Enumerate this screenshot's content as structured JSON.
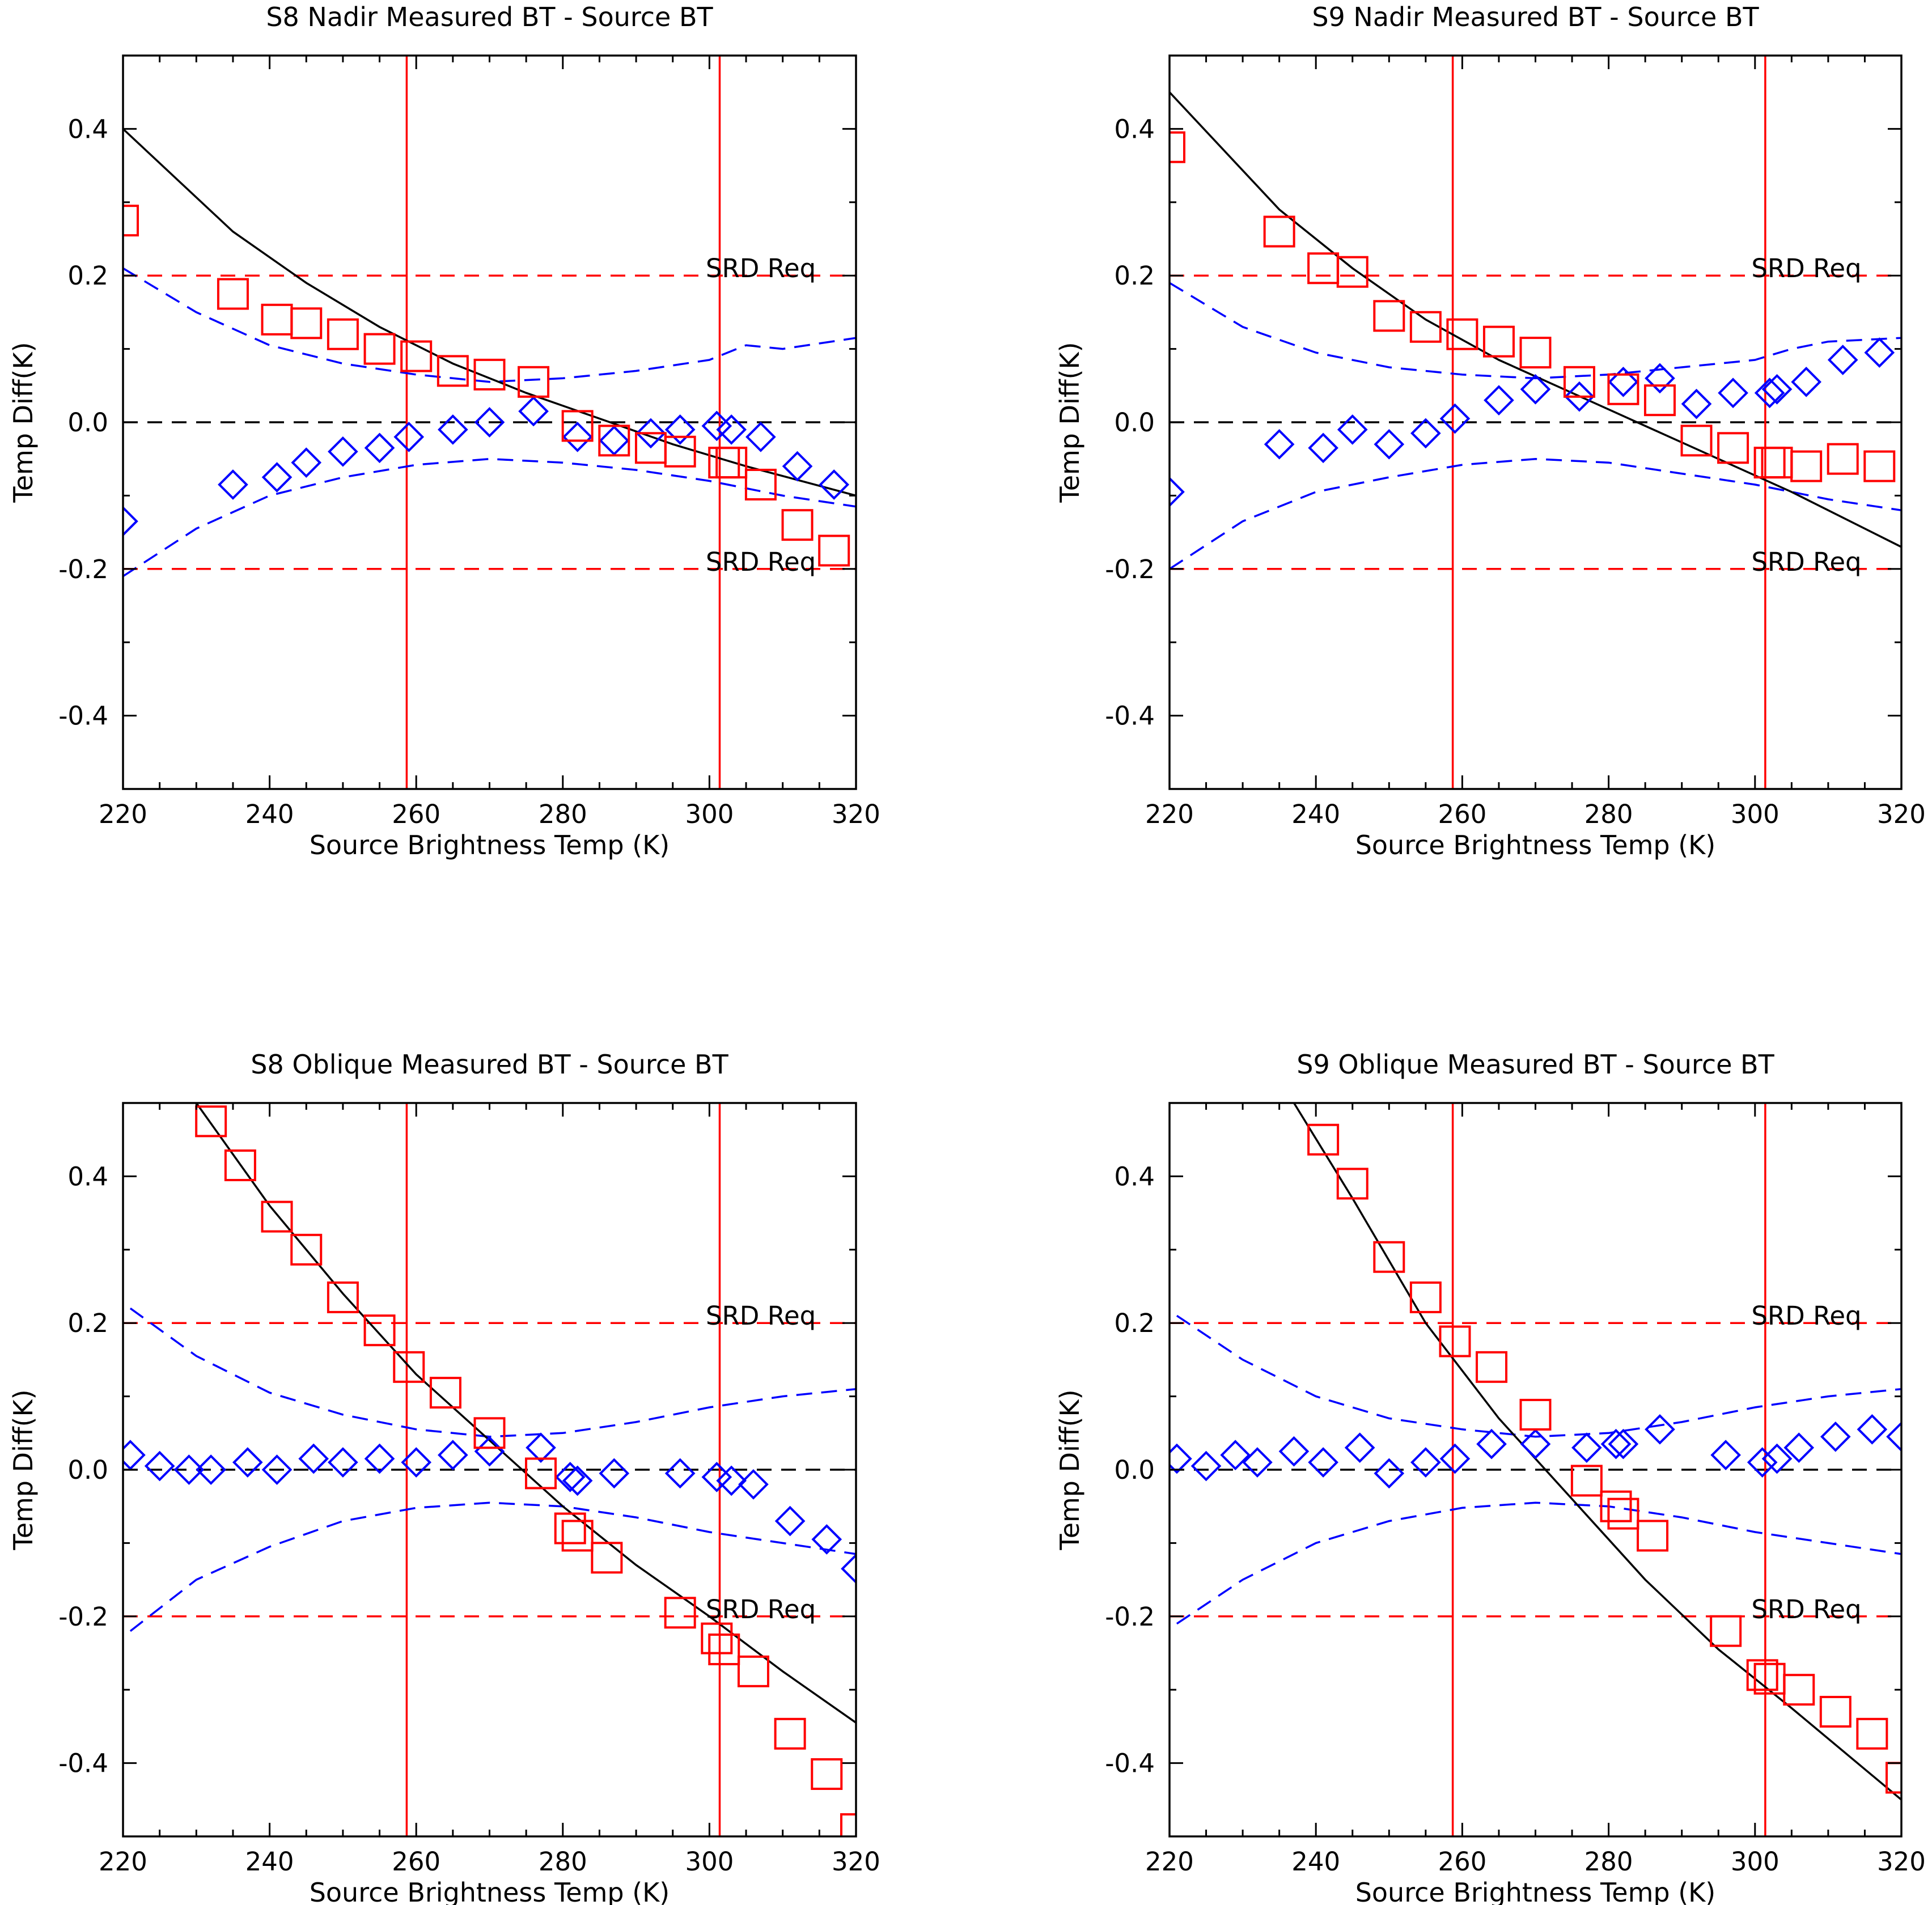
{
  "figure": {
    "name": "brightness-temperature-difference-panels"
  },
  "chart_data": [
    {
      "type": "scatter",
      "title": "S8 Nadir Measured BT - Source BT",
      "xlabel": "Source Brightness Temp (K)",
      "ylabel": "Temp Diff(K)",
      "xlim": [
        220,
        320
      ],
      "ylim": [
        -0.5,
        0.5
      ],
      "xticks": [
        220,
        240,
        260,
        280,
        300,
        320
      ],
      "yticks": [
        -0.4,
        -0.2,
        0.0,
        0.2,
        0.4
      ],
      "ytick_labels": [
        "-0.4",
        "-0.2",
        "0.0",
        "0.2",
        "0.4"
      ],
      "requirement": {
        "upper": 0.2,
        "lower": -0.2,
        "label": "SRD Req"
      },
      "vlines": [
        258.7,
        301.4
      ],
      "squares": {
        "name": "measured",
        "x": [
          220,
          235,
          241,
          245,
          250,
          255,
          260,
          265,
          270,
          276,
          282,
          287,
          292,
          296,
          302,
          303,
          307,
          312,
          317
        ],
        "y": [
          0.275,
          0.175,
          0.14,
          0.135,
          0.12,
          0.1,
          0.09,
          0.07,
          0.065,
          0.055,
          -0.005,
          -0.025,
          -0.035,
          -0.04,
          -0.055,
          -0.055,
          -0.085,
          -0.14,
          -0.175
        ]
      },
      "diamonds": {
        "name": "residual",
        "x": [
          220,
          235,
          241,
          245,
          250,
          255,
          259,
          265,
          270,
          276,
          282,
          287,
          292,
          296,
          301,
          303,
          307,
          312,
          317
        ],
        "y": [
          -0.135,
          -0.085,
          -0.075,
          -0.055,
          -0.04,
          -0.035,
          -0.02,
          -0.01,
          0.0,
          0.015,
          -0.02,
          -0.025,
          -0.015,
          -0.01,
          -0.005,
          -0.01,
          -0.02,
          -0.06,
          -0.085
        ]
      },
      "fit": {
        "name": "fit",
        "x": [
          220,
          235,
          245,
          255,
          265,
          275,
          285,
          295,
          305,
          320
        ],
        "y": [
          0.4,
          0.26,
          0.19,
          0.13,
          0.08,
          0.04,
          0.005,
          -0.03,
          -0.06,
          -0.1
        ]
      },
      "uncertainty_upper": {
        "name": "upper-uncertainty",
        "x": [
          220,
          230,
          240,
          250,
          260,
          270,
          280,
          290,
          300,
          305,
          310,
          320
        ],
        "y": [
          0.21,
          0.15,
          0.105,
          0.08,
          0.065,
          0.055,
          0.06,
          0.07,
          0.085,
          0.105,
          0.1,
          0.115
        ]
      },
      "uncertainty_lower": {
        "name": "lower-uncertainty",
        "x": [
          220,
          230,
          240,
          250,
          260,
          270,
          280,
          290,
          300,
          305,
          310,
          320
        ],
        "y": [
          -0.21,
          -0.145,
          -0.1,
          -0.075,
          -0.058,
          -0.05,
          -0.055,
          -0.065,
          -0.08,
          -0.09,
          -0.1,
          -0.115
        ]
      }
    },
    {
      "type": "scatter",
      "title": "S9 Nadir Measured BT - Source BT",
      "xlabel": "Source Brightness Temp (K)",
      "ylabel": "Temp Diff(K)",
      "xlim": [
        220,
        320
      ],
      "ylim": [
        -0.5,
        0.5
      ],
      "xticks": [
        220,
        240,
        260,
        280,
        300,
        320
      ],
      "yticks": [
        -0.4,
        -0.2,
        0.0,
        0.2,
        0.4
      ],
      "ytick_labels": [
        "-0.4",
        "-0.2",
        "0.0",
        "0.2",
        "0.4"
      ],
      "requirement": {
        "upper": 0.2,
        "lower": -0.2,
        "label": "SRD Req"
      },
      "vlines": [
        258.7,
        301.4
      ],
      "squares": {
        "name": "measured",
        "x": [
          220,
          235,
          241,
          245,
          250,
          255,
          260,
          265,
          270,
          276,
          282,
          287,
          292,
          297,
          302,
          303,
          307,
          312,
          317
        ],
        "y": [
          0.375,
          0.26,
          0.21,
          0.205,
          0.145,
          0.13,
          0.12,
          0.11,
          0.095,
          0.055,
          0.045,
          0.03,
          -0.025,
          -0.035,
          -0.055,
          -0.055,
          -0.06,
          -0.05,
          -0.06
        ]
      },
      "diamonds": {
        "name": "residual",
        "x": [
          220,
          235,
          241,
          245,
          250,
          255,
          259,
          265,
          270,
          276,
          282,
          287,
          292,
          297,
          302,
          303,
          307,
          312,
          317
        ],
        "y": [
          -0.095,
          -0.03,
          -0.035,
          -0.01,
          -0.03,
          -0.015,
          0.005,
          0.03,
          0.045,
          0.035,
          0.055,
          0.06,
          0.025,
          0.04,
          0.04,
          0.045,
          0.055,
          0.085,
          0.095
        ]
      },
      "fit": {
        "name": "fit",
        "x": [
          220,
          235,
          245,
          255,
          265,
          275,
          285,
          295,
          305,
          320
        ],
        "y": [
          0.45,
          0.29,
          0.21,
          0.14,
          0.085,
          0.04,
          -0.005,
          -0.05,
          -0.095,
          -0.17
        ]
      },
      "uncertainty_upper": {
        "name": "upper-uncertainty",
        "x": [
          220,
          230,
          240,
          250,
          260,
          270,
          280,
          290,
          300,
          305,
          310,
          320
        ],
        "y": [
          0.19,
          0.13,
          0.095,
          0.075,
          0.065,
          0.06,
          0.065,
          0.075,
          0.085,
          0.1,
          0.11,
          0.115
        ]
      },
      "uncertainty_lower": {
        "name": "lower-uncertainty",
        "x": [
          220,
          230,
          240,
          250,
          260,
          270,
          280,
          290,
          300,
          305,
          310,
          320
        ],
        "y": [
          -0.2,
          -0.135,
          -0.095,
          -0.075,
          -0.058,
          -0.05,
          -0.055,
          -0.07,
          -0.085,
          -0.095,
          -0.105,
          -0.12
        ]
      }
    },
    {
      "type": "scatter",
      "title": "S8 Oblique Measured BT - Source BT",
      "xlabel": "Source Brightness Temp (K)",
      "ylabel": "Temp Diff(K)",
      "xlim": [
        220,
        320
      ],
      "ylim": [
        -0.5,
        0.5
      ],
      "xticks": [
        220,
        240,
        260,
        280,
        300,
        320
      ],
      "yticks": [
        -0.4,
        -0.2,
        0.0,
        0.2,
        0.4
      ],
      "ytick_labels": [
        "-0.4",
        "-0.2",
        "0.0",
        "0.2",
        "0.4"
      ],
      "requirement": {
        "upper": 0.2,
        "lower": -0.2,
        "label": "SRD Req"
      },
      "vlines": [
        258.7,
        301.4
      ],
      "squares": {
        "name": "measured",
        "x": [
          232,
          236,
          241,
          245,
          250,
          255,
          259,
          264,
          270,
          277,
          281,
          282,
          286,
          296,
          301,
          302,
          306,
          311,
          316,
          320
        ],
        "y": [
          0.475,
          0.415,
          0.345,
          0.3,
          0.235,
          0.19,
          0.14,
          0.105,
          0.05,
          -0.005,
          -0.08,
          -0.09,
          -0.12,
          -0.195,
          -0.23,
          -0.245,
          -0.275,
          -0.36,
          -0.415,
          -0.49
        ]
      },
      "diamonds": {
        "name": "residual",
        "x": [
          221,
          225,
          229,
          232,
          237,
          241,
          246,
          250,
          255,
          260,
          265,
          270,
          277,
          281,
          282,
          287,
          296,
          301,
          303,
          306,
          311,
          316,
          320
        ],
        "y": [
          0.02,
          0.005,
          0.0,
          0.0,
          0.01,
          0.0,
          0.015,
          0.01,
          0.015,
          0.01,
          0.02,
          0.025,
          0.03,
          -0.01,
          -0.015,
          -0.005,
          -0.005,
          -0.01,
          -0.015,
          -0.02,
          -0.07,
          -0.095,
          -0.135
        ]
      },
      "fit": {
        "name": "fit",
        "x": [
          230,
          240,
          250,
          260,
          270,
          280,
          290,
          300,
          310,
          320
        ],
        "y": [
          0.5,
          0.36,
          0.24,
          0.13,
          0.04,
          -0.05,
          -0.13,
          -0.2,
          -0.275,
          -0.345
        ]
      },
      "uncertainty_upper": {
        "name": "upper-uncertainty",
        "x": [
          221,
          230,
          240,
          250,
          260,
          270,
          280,
          290,
          300,
          310,
          320
        ],
        "y": [
          0.22,
          0.155,
          0.105,
          0.075,
          0.055,
          0.045,
          0.05,
          0.065,
          0.085,
          0.1,
          0.11
        ]
      },
      "uncertainty_lower": {
        "name": "lower-uncertainty",
        "x": [
          221,
          230,
          240,
          250,
          260,
          270,
          280,
          290,
          300,
          310,
          320
        ],
        "y": [
          -0.22,
          -0.15,
          -0.105,
          -0.07,
          -0.052,
          -0.045,
          -0.05,
          -0.065,
          -0.085,
          -0.1,
          -0.115
        ]
      }
    },
    {
      "type": "scatter",
      "title": "S9 Oblique Measured BT - Source BT",
      "xlabel": "Source Brightness Temp (K)",
      "ylabel": "Temp Diff(K)",
      "xlim": [
        220,
        320
      ],
      "ylim": [
        -0.5,
        0.5
      ],
      "xticks": [
        220,
        240,
        260,
        280,
        300,
        320
      ],
      "yticks": [
        -0.4,
        -0.2,
        0.0,
        0.2,
        0.4
      ],
      "ytick_labels": [
        "-0.4",
        "-0.2",
        "0.0",
        "0.2",
        "0.4"
      ],
      "requirement": {
        "upper": 0.2,
        "lower": -0.2,
        "label": "SRD Req"
      },
      "vlines": [
        258.7,
        301.4
      ],
      "squares": {
        "name": "measured",
        "x": [
          241,
          245,
          250,
          255,
          259,
          264,
          270,
          277,
          281,
          282,
          286,
          296,
          301,
          302,
          306,
          311,
          316,
          320
        ],
        "y": [
          0.45,
          0.39,
          0.29,
          0.235,
          0.175,
          0.14,
          0.075,
          -0.015,
          -0.05,
          -0.06,
          -0.09,
          -0.22,
          -0.28,
          -0.285,
          -0.3,
          -0.33,
          -0.36,
          -0.42
        ]
      },
      "diamonds": {
        "name": "residual",
        "x": [
          221,
          225,
          229,
          232,
          237,
          241,
          246,
          250,
          255,
          259,
          264,
          270,
          277,
          281,
          282,
          287,
          296,
          301,
          303,
          306,
          311,
          316,
          320
        ],
        "y": [
          0.015,
          0.005,
          0.02,
          0.01,
          0.025,
          0.01,
          0.03,
          -0.005,
          0.01,
          0.015,
          0.035,
          0.035,
          0.03,
          0.035,
          0.035,
          0.055,
          0.02,
          0.01,
          0.015,
          0.03,
          0.045,
          0.055,
          0.045
        ]
      },
      "fit": {
        "name": "fit",
        "x": [
          237,
          245,
          255,
          265,
          275,
          285,
          295,
          305,
          320
        ],
        "y": [
          0.5,
          0.37,
          0.2,
          0.07,
          -0.04,
          -0.15,
          -0.245,
          -0.325,
          -0.45
        ]
      },
      "uncertainty_upper": {
        "name": "upper-uncertainty",
        "x": [
          221,
          230,
          240,
          250,
          260,
          270,
          280,
          290,
          300,
          310,
          320
        ],
        "y": [
          0.21,
          0.15,
          0.1,
          0.07,
          0.055,
          0.045,
          0.05,
          0.065,
          0.085,
          0.1,
          0.11
        ]
      },
      "uncertainty_lower": {
        "name": "lower-uncertainty",
        "x": [
          221,
          230,
          240,
          250,
          260,
          270,
          280,
          290,
          300,
          310,
          320
        ],
        "y": [
          -0.21,
          -0.15,
          -0.1,
          -0.07,
          -0.052,
          -0.045,
          -0.05,
          -0.065,
          -0.085,
          -0.1,
          -0.115
        ]
      }
    }
  ],
  "colors": {
    "axes": "#000000",
    "measured": "#ff0000",
    "residual": "#0000ff",
    "fit": "#000000",
    "requirement": "#ff0000",
    "zero_line": "#000000",
    "vline": "#ff0000",
    "uncertainty": "#0000ff"
  }
}
